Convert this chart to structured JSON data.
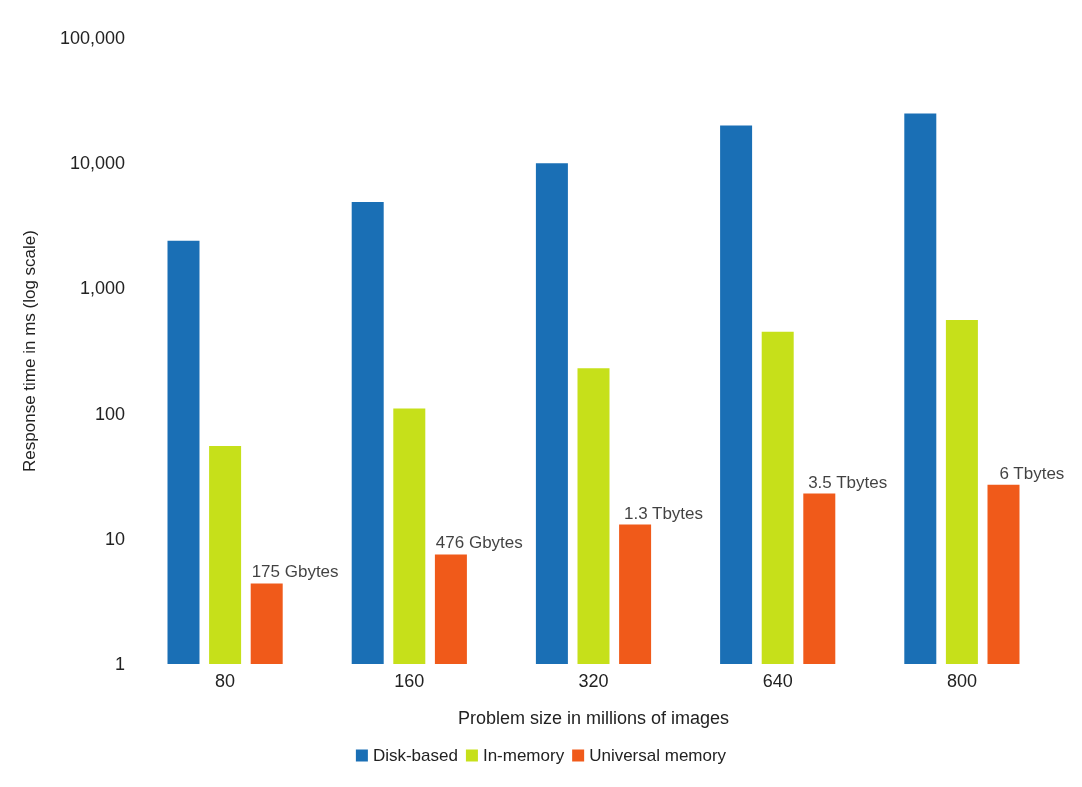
{
  "chart_data": {
    "type": "bar",
    "xlabel": "Problem size in millions of images",
    "ylabel": "Response time in ms (log scale)",
    "categories": [
      "80",
      "160",
      "320",
      "640",
      "800"
    ],
    "series": [
      {
        "name": "Disk-based",
        "color": "#1a6fb5",
        "values": [
          2400,
          4900,
          10000,
          20000,
          25000
        ]
      },
      {
        "name": "In-memory",
        "color": "#c6e01a",
        "values": [
          55,
          110,
          230,
          450,
          560
        ]
      },
      {
        "name": "Universal memory",
        "color": "#f05a1a",
        "values": [
          4.4,
          7.5,
          13,
          23,
          27
        ]
      }
    ],
    "annotations": [
      "175 Gbytes",
      "476 Gbytes",
      "1.3 Tbytes",
      "3.5 Tbytes",
      "6 Tbytes"
    ],
    "log": "y",
    "ylim": [
      1,
      100000
    ],
    "yticks": [
      1,
      10,
      100,
      {
        "value": 1000,
        "label": "1,000"
      },
      {
        "value": 10000,
        "label": "10,000"
      },
      {
        "value": 100000,
        "label": "100,000"
      }
    ],
    "grid": false,
    "legend": "bottom"
  }
}
